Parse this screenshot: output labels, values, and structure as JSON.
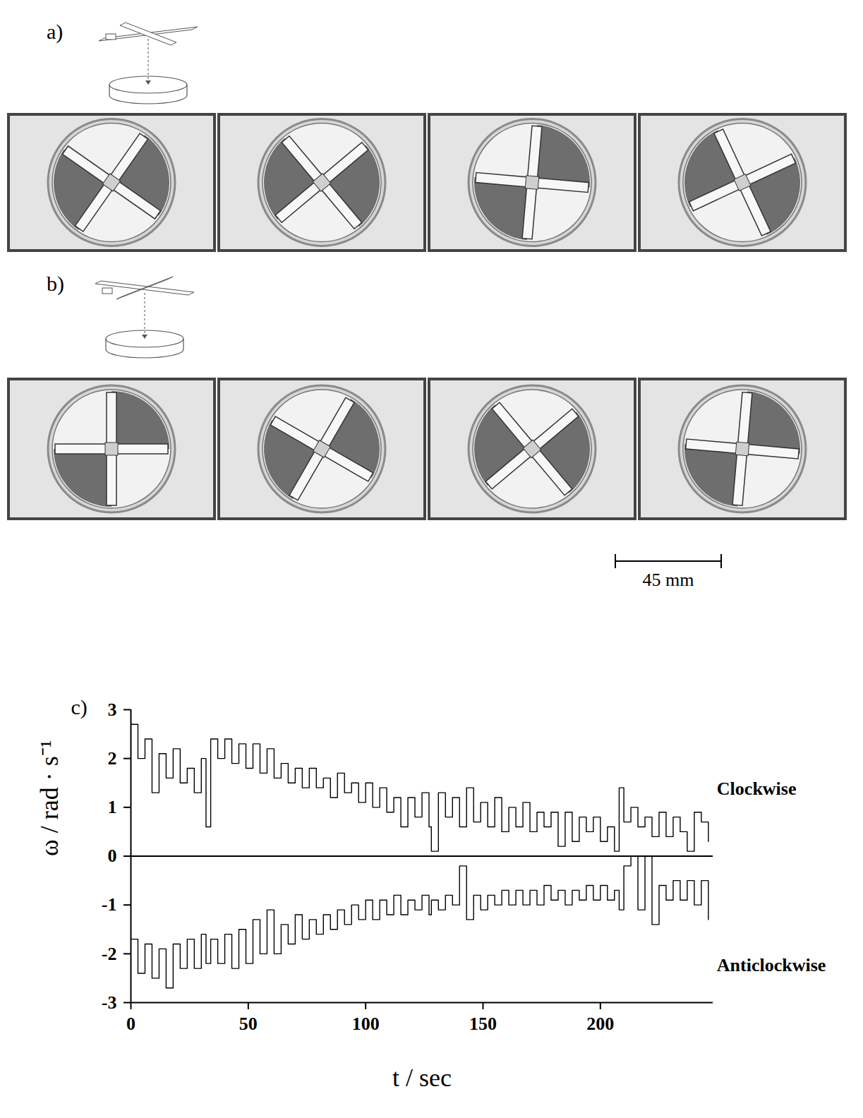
{
  "figure": {
    "panels": [
      {
        "label": "a)"
      },
      {
        "label": "b)"
      }
    ],
    "scale_bar": "45 mm"
  },
  "chart_data": {
    "type": "line",
    "panel_label": "c)",
    "x_label": "t / sec",
    "y_label": "ω / rad · s⁻¹",
    "line_style": "step",
    "x": [
      0,
      3,
      6,
      9,
      12,
      15,
      18,
      21,
      24,
      27,
      30,
      32,
      34,
      37,
      40,
      43,
      46,
      49,
      52,
      55,
      58,
      61,
      64,
      67,
      70,
      73,
      76,
      79,
      82,
      85,
      88,
      91,
      94,
      97,
      100,
      103,
      106,
      109,
      112,
      115,
      118,
      121,
      124,
      127,
      128,
      131,
      134,
      137,
      140,
      143,
      146,
      149,
      152,
      155,
      158,
      161,
      164,
      167,
      170,
      173,
      176,
      179,
      182,
      185,
      188,
      191,
      194,
      197,
      200,
      203,
      206,
      208,
      210,
      213,
      216,
      219,
      222,
      225,
      228,
      231,
      234,
      237,
      240,
      243,
      246
    ],
    "series": [
      {
        "name": "Clockwise",
        "color": "#000000",
        "values": [
          2.7,
          2.0,
          2.4,
          1.3,
          2.1,
          1.6,
          2.2,
          1.5,
          1.8,
          1.3,
          2.0,
          0.6,
          2.4,
          2.0,
          2.4,
          1.9,
          2.3,
          1.8,
          2.3,
          1.7,
          2.2,
          1.6,
          1.9,
          1.5,
          1.8,
          1.4,
          1.8,
          1.4,
          1.6,
          1.2,
          1.7,
          1.3,
          1.5,
          1.1,
          1.5,
          1.0,
          1.4,
          0.9,
          1.2,
          0.6,
          1.2,
          0.8,
          1.3,
          0.6,
          0.1,
          1.3,
          0.8,
          1.2,
          0.6,
          1.4,
          0.7,
          1.1,
          0.6,
          1.2,
          0.5,
          1.0,
          0.6,
          1.1,
          0.5,
          0.9,
          0.6,
          0.9,
          0.2,
          0.9,
          0.3,
          0.8,
          0.5,
          0.8,
          0.3,
          0.6,
          0.1,
          1.4,
          0.7,
          1.0,
          0.6,
          0.8,
          0.4,
          0.9,
          0.4,
          0.8,
          0.5,
          0.1,
          0.9,
          0.7,
          0.3
        ]
      },
      {
        "name": "Anticlockwise",
        "color": "#000000",
        "values": [
          -1.7,
          -2.4,
          -1.8,
          -2.5,
          -1.9,
          -2.7,
          -1.8,
          -2.3,
          -1.7,
          -2.3,
          -1.6,
          -2.2,
          -1.7,
          -2.2,
          -1.6,
          -2.3,
          -1.5,
          -2.2,
          -1.3,
          -2.0,
          -1.1,
          -2.0,
          -1.4,
          -1.8,
          -1.2,
          -1.7,
          -1.3,
          -1.6,
          -1.2,
          -1.5,
          -1.1,
          -1.4,
          -1.0,
          -1.3,
          -0.9,
          -1.3,
          -0.9,
          -1.2,
          -0.8,
          -1.2,
          -0.9,
          -1.1,
          -0.8,
          -1.2,
          -0.9,
          -1.1,
          -0.8,
          -1.0,
          -0.2,
          -1.3,
          -0.8,
          -1.1,
          -0.8,
          -1.0,
          -0.7,
          -1.0,
          -0.7,
          -1.0,
          -0.7,
          -1.0,
          -0.6,
          -0.9,
          -0.7,
          -1.0,
          -0.7,
          -0.9,
          -0.6,
          -0.9,
          -0.6,
          -0.9,
          -0.7,
          -1.1,
          -0.2,
          0.0,
          -1.1,
          0.0,
          -1.4,
          -0.6,
          -0.9,
          -0.5,
          -0.9,
          -0.5,
          -1.0,
          -0.5,
          -1.3
        ]
      }
    ],
    "xlim": [
      0,
      248
    ],
    "ylim": [
      -3,
      3
    ],
    "xticks": [
      0,
      50,
      100,
      150,
      200
    ],
    "yticks": [
      -3,
      -2,
      -1,
      0,
      1,
      2,
      3
    ]
  }
}
